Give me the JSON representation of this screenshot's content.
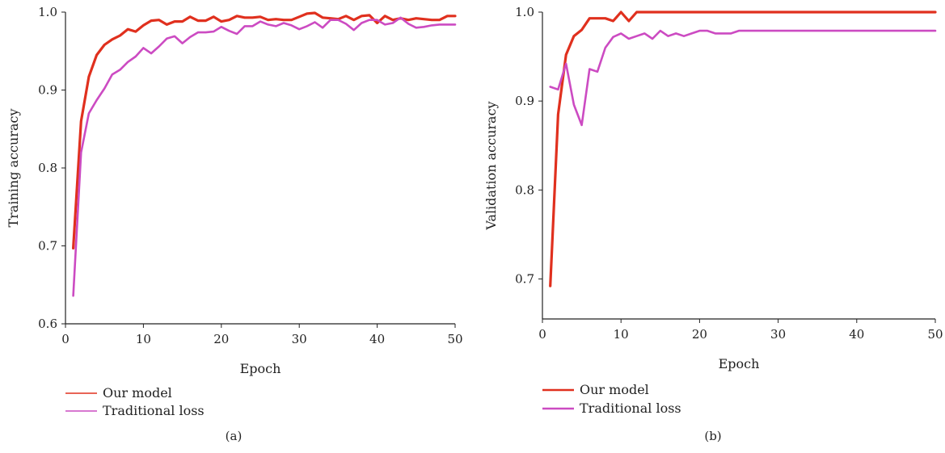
{
  "colors": {
    "our_model": "#e0301e",
    "traditional_loss": "#cc4bc2",
    "axis": "#222222"
  },
  "chart_data": [
    {
      "type": "line",
      "caption": "(a)",
      "xlabel": "Epoch",
      "ylabel": "Training accuracy",
      "xlim": [
        0,
        50
      ],
      "ylim": [
        0.6,
        1.0
      ],
      "xticks": [
        "0",
        "10",
        "20",
        "30",
        "40",
        "50"
      ],
      "yticks": [
        "0.6",
        "0.7",
        "0.8",
        "0.9",
        "1.0"
      ],
      "grid": false,
      "legend_position": "bottom-left",
      "series": [
        {
          "name": "Our model",
          "x": [
            1,
            2,
            3,
            4,
            5,
            6,
            7,
            8,
            9,
            10,
            11,
            12,
            13,
            14,
            15,
            16,
            17,
            18,
            19,
            20,
            21,
            22,
            23,
            24,
            25,
            26,
            27,
            28,
            29,
            30,
            31,
            32,
            33,
            34,
            35,
            36,
            37,
            38,
            39,
            40,
            41,
            42,
            43,
            44,
            45,
            46,
            47,
            48,
            49,
            50
          ],
          "y": [
            0.697,
            0.86,
            0.917,
            0.945,
            0.958,
            0.965,
            0.97,
            0.978,
            0.975,
            0.983,
            0.989,
            0.99,
            0.984,
            0.988,
            0.988,
            0.994,
            0.989,
            0.989,
            0.994,
            0.988,
            0.99,
            0.995,
            0.993,
            0.993,
            0.994,
            0.99,
            0.991,
            0.99,
            0.99,
            0.994,
            0.998,
            0.999,
            0.993,
            0.992,
            0.991,
            0.995,
            0.99,
            0.995,
            0.996,
            0.986,
            0.995,
            0.99,
            0.992,
            0.99,
            0.992,
            0.991,
            0.99,
            0.99,
            0.995,
            0.995
          ]
        },
        {
          "name": "Traditional loss",
          "x": [
            1,
            2,
            3,
            4,
            5,
            6,
            7,
            8,
            9,
            10,
            11,
            12,
            13,
            14,
            15,
            16,
            17,
            18,
            19,
            20,
            21,
            22,
            23,
            24,
            25,
            26,
            27,
            28,
            29,
            30,
            31,
            32,
            33,
            34,
            35,
            36,
            37,
            38,
            39,
            40,
            41,
            42,
            43,
            44,
            45,
            46,
            47,
            48,
            49,
            50
          ],
          "y": [
            0.636,
            0.82,
            0.87,
            0.887,
            0.902,
            0.92,
            0.926,
            0.936,
            0.943,
            0.954,
            0.947,
            0.956,
            0.966,
            0.969,
            0.96,
            0.968,
            0.974,
            0.974,
            0.975,
            0.981,
            0.976,
            0.972,
            0.982,
            0.982,
            0.988,
            0.984,
            0.982,
            0.986,
            0.983,
            0.978,
            0.982,
            0.987,
            0.98,
            0.99,
            0.99,
            0.985,
            0.977,
            0.986,
            0.99,
            0.99,
            0.984,
            0.986,
            0.993,
            0.985,
            0.98,
            0.981,
            0.983,
            0.984,
            0.984,
            0.984
          ]
        }
      ]
    },
    {
      "type": "line",
      "caption": "(b)",
      "xlabel": "Epoch",
      "ylabel": "Validation accuracy",
      "xlim": [
        0,
        50
      ],
      "ylim": [
        0.655,
        1.0
      ],
      "xticks": [
        "0",
        "10",
        "20",
        "30",
        "40",
        "50"
      ],
      "yticks": [
        "0.7",
        "0.8",
        "0.9",
        "1.0"
      ],
      "grid": false,
      "legend_position": "bottom-left",
      "series": [
        {
          "name": "Our model",
          "x": [
            1,
            2,
            3,
            4,
            5,
            6,
            7,
            8,
            9,
            10,
            11,
            12,
            13,
            14,
            15,
            20,
            25,
            30,
            35,
            40,
            45,
            50
          ],
          "y": [
            0.692,
            0.885,
            0.952,
            0.973,
            0.98,
            0.993,
            0.993,
            0.993,
            0.99,
            1.0,
            0.99,
            1.0,
            1.0,
            1.0,
            1.0,
            1.0,
            1.0,
            1.0,
            1.0,
            1.0,
            1.0,
            1.0
          ]
        },
        {
          "name": "Traditional loss",
          "x": [
            1,
            2,
            3,
            4,
            5,
            6,
            7,
            8,
            9,
            10,
            11,
            12,
            13,
            14,
            15,
            16,
            17,
            18,
            19,
            20,
            21,
            22,
            23,
            24,
            25,
            30,
            35,
            40,
            45,
            50
          ],
          "y": [
            0.916,
            0.913,
            0.942,
            0.896,
            0.873,
            0.936,
            0.933,
            0.96,
            0.972,
            0.976,
            0.97,
            0.973,
            0.976,
            0.97,
            0.979,
            0.973,
            0.976,
            0.973,
            0.976,
            0.979,
            0.979,
            0.976,
            0.976,
            0.976,
            0.979,
            0.979,
            0.979,
            0.979,
            0.979,
            0.979
          ]
        }
      ]
    }
  ]
}
